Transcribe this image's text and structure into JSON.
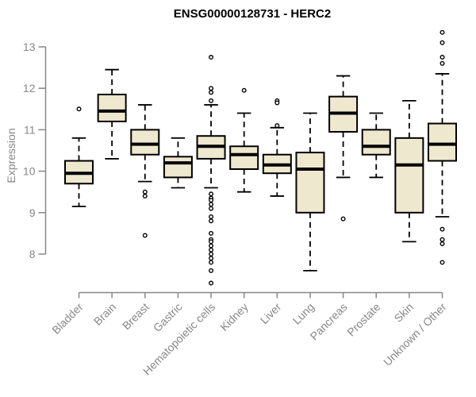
{
  "chart_data": {
    "type": "boxplot",
    "title": "ENSG00000128731 - HERC2",
    "ylabel": "Expression",
    "xlabel": "",
    "yticks": [
      8,
      9,
      10,
      11,
      12,
      13
    ],
    "ylim": [
      7.2,
      13.4
    ],
    "grid": false,
    "legend": false,
    "colors": {
      "box_fill": "#EDE8CE",
      "box_line": "#000000",
      "axis": "#878787",
      "title": "#000000"
    },
    "categories": [
      "Bladder",
      "Brain",
      "Breast",
      "Gastric",
      "Hematopoietic cells",
      "Kidney",
      "Liver",
      "Lung",
      "Pancreas",
      "Prostate",
      "Skin",
      "Unknown / Other"
    ],
    "series": [
      {
        "category": "Bladder",
        "low": 9.15,
        "q1": 9.7,
        "median": 9.95,
        "q3": 10.25,
        "high": 10.8,
        "outliers": [
          11.5
        ]
      },
      {
        "category": "Brain",
        "low": 10.3,
        "q1": 11.2,
        "median": 11.45,
        "q3": 11.85,
        "high": 12.45,
        "outliers": []
      },
      {
        "category": "Breast",
        "low": 9.75,
        "q1": 10.4,
        "median": 10.65,
        "q3": 11.0,
        "high": 11.6,
        "outliers": [
          9.5,
          9.4,
          8.45
        ]
      },
      {
        "category": "Gastric",
        "low": 9.6,
        "q1": 9.85,
        "median": 10.2,
        "q3": 10.35,
        "high": 10.8,
        "outliers": []
      },
      {
        "category": "Hematopoietic cells",
        "low": 9.6,
        "q1": 10.3,
        "median": 10.6,
        "q3": 10.85,
        "high": 11.6,
        "outliers": [
          12.75,
          12.0,
          11.9,
          11.7,
          9.45,
          9.35,
          9.3,
          9.2,
          9.1,
          8.9,
          8.8,
          8.5,
          8.35,
          8.3,
          8.2,
          8.1,
          8.0,
          7.9,
          7.8,
          7.6,
          7.3
        ]
      },
      {
        "category": "Kidney",
        "low": 9.5,
        "q1": 10.05,
        "median": 10.4,
        "q3": 10.6,
        "high": 11.4,
        "outliers": [
          11.95
        ]
      },
      {
        "category": "Liver",
        "low": 9.4,
        "q1": 9.95,
        "median": 10.15,
        "q3": 10.4,
        "high": 11.05,
        "outliers": [
          11.7,
          11.65,
          11.1
        ]
      },
      {
        "category": "Lung",
        "low": 7.6,
        "q1": 9.0,
        "median": 10.05,
        "q3": 10.45,
        "high": 11.4,
        "outliers": []
      },
      {
        "category": "Pancreas",
        "low": 9.85,
        "q1": 10.95,
        "median": 11.4,
        "q3": 11.8,
        "high": 12.3,
        "outliers": [
          8.85
        ]
      },
      {
        "category": "Prostate",
        "low": 9.85,
        "q1": 10.4,
        "median": 10.6,
        "q3": 11.0,
        "high": 11.4,
        "outliers": []
      },
      {
        "category": "Skin",
        "low": 8.3,
        "q1": 9.0,
        "median": 10.15,
        "q3": 10.8,
        "high": 11.7,
        "outliers": []
      },
      {
        "category": "Unknown / Other",
        "low": 8.9,
        "q1": 10.25,
        "median": 10.65,
        "q3": 11.15,
        "high": 12.35,
        "outliers": [
          13.35,
          13.1,
          12.75,
          12.6,
          8.6,
          8.35,
          8.25,
          7.8
        ]
      }
    ]
  }
}
